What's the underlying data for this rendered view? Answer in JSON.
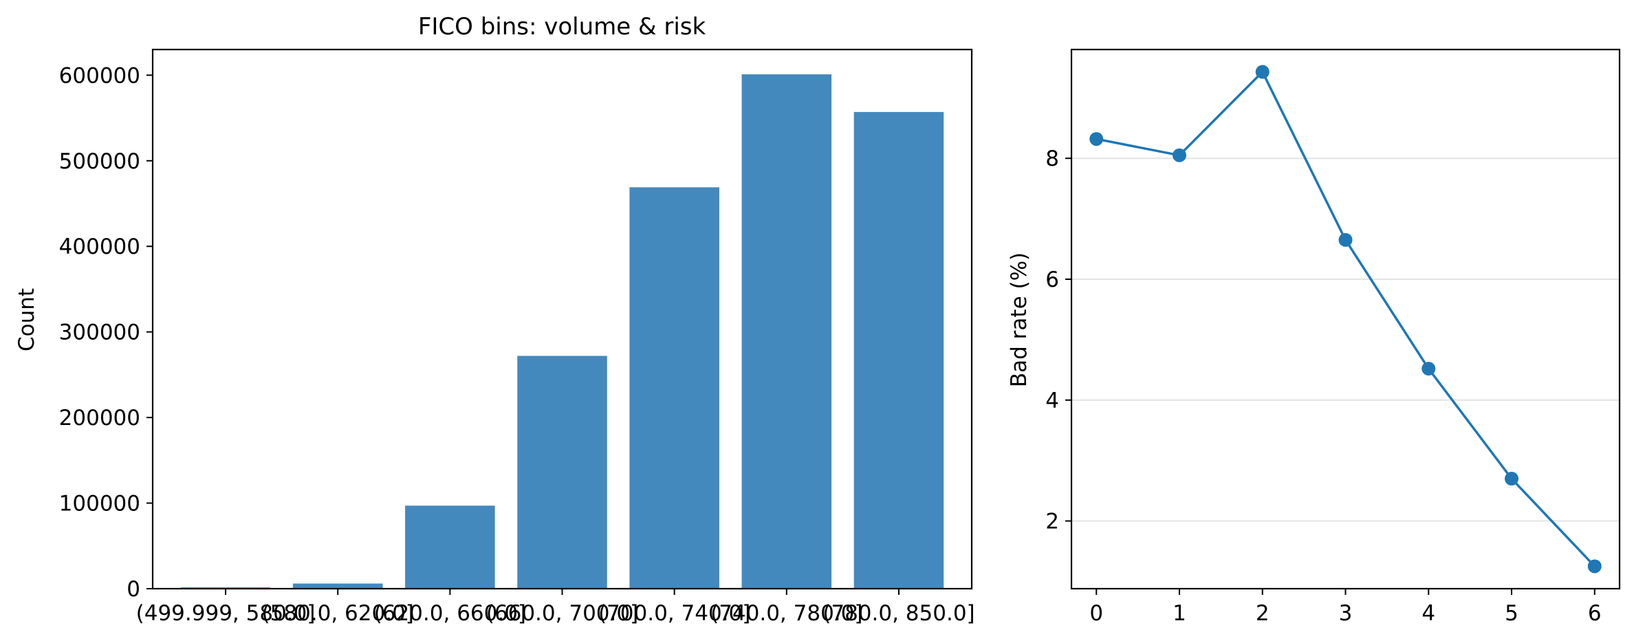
{
  "chart_data": [
    {
      "type": "bar",
      "title": "FICO bins: volume & risk",
      "xlabel": "",
      "ylabel": "Count",
      "categories": [
        "(499.999, 580.0]",
        "(580.0, 620.0]",
        "(620.0, 660.0]",
        "(660.0, 700.0]",
        "(700.0, 740.0]",
        "(740.0, 780.0]",
        "(780.0, 850.0]"
      ],
      "values": [
        1500,
        6000,
        97000,
        272000,
        469000,
        601000,
        557000
      ],
      "ylim": [
        0,
        630000
      ],
      "yticks": [
        0,
        100000,
        200000,
        300000,
        400000,
        500000,
        600000
      ],
      "color": "#4389bd",
      "grid": false
    },
    {
      "type": "line",
      "title": "",
      "xlabel": "",
      "ylabel": "Bad rate (%)",
      "x": [
        0,
        1,
        2,
        3,
        4,
        5,
        6
      ],
      "values": [
        8.32,
        8.05,
        9.43,
        6.65,
        4.52,
        2.7,
        1.25
      ],
      "xlim": [
        -0.3,
        6.3
      ],
      "ylim": [
        0.88,
        9.8
      ],
      "xticks": [
        0,
        1,
        2,
        3,
        4,
        5,
        6
      ],
      "yticks": [
        2,
        4,
        6,
        8
      ],
      "color": "#1f77b4",
      "grid": "horizontal"
    }
  ]
}
